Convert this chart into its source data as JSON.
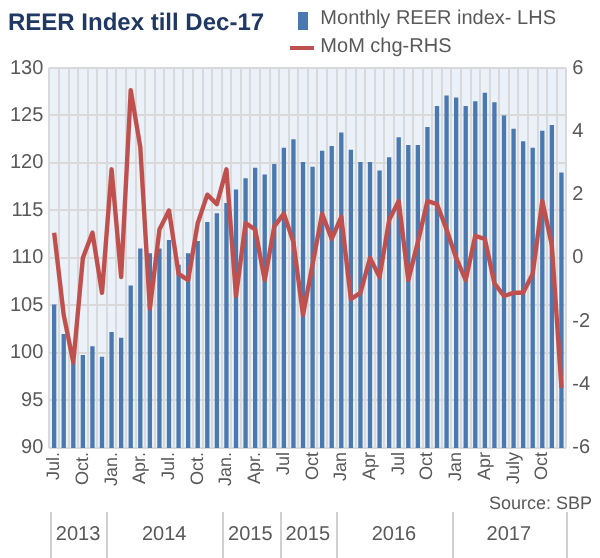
{
  "chart_data": {
    "type": "bar",
    "title": "REER Index till Dec-17",
    "categories": [
      "Jul.",
      null,
      null,
      "Oct.",
      null,
      null,
      "Jan.",
      null,
      null,
      "Apr.",
      null,
      null,
      "Jul.",
      null,
      null,
      "Oct.",
      null,
      null,
      "Jan.",
      null,
      null,
      "Apr.",
      null,
      null,
      "Jul",
      null,
      null,
      "Oct",
      null,
      null,
      "Jan",
      null,
      null,
      "Apr",
      null,
      null,
      "Jul",
      null,
      null,
      "Oct",
      null,
      null,
      "Jan",
      null,
      null,
      "Apr",
      null,
      null,
      "July",
      null,
      null,
      "Oct",
      null,
      null
    ],
    "series": [
      {
        "name": "Monthly REER index- LHS",
        "axis": "y",
        "color": "#4a78b0",
        "values": [
          105.1,
          102,
          99,
          99.8,
          100.7,
          99.6,
          102.2,
          101.6,
          107.1,
          111,
          110.5,
          111,
          111.9,
          109.3,
          110.5,
          111.8,
          113.8,
          114.7,
          115.8,
          117.2,
          118.4,
          119.5,
          118.8,
          119.9,
          121.6,
          122.5,
          120.1,
          119.6,
          121.3,
          121.8,
          123.2,
          121.4,
          120.1,
          120.1,
          119.2,
          120.6,
          122.7,
          121.9,
          121.9,
          123.8,
          126,
          127.1,
          126.9,
          126,
          126.5,
          127.4,
          126.4,
          125,
          123.6,
          122.3,
          121.6,
          123.4,
          124,
          119
        ]
      },
      {
        "name": "MoM chg-RHS",
        "type": "line",
        "axis": "y2",
        "color": "#c0504d",
        "values": [
          0.8,
          -1.8,
          -3.3,
          0,
          0.8,
          -1.1,
          2.8,
          -0.6,
          5.3,
          3.5,
          -1.6,
          0.9,
          1.5,
          -0.5,
          -0.7,
          1.1,
          2,
          1.7,
          2.8,
          -1.2,
          1.1,
          0.9,
          -0.7,
          1,
          1.4,
          0.5,
          -1.8,
          -0.2,
          1.4,
          0.6,
          1.3,
          -1.3,
          -1.1,
          0,
          -0.6,
          1.2,
          1.8,
          -0.7,
          0.5,
          1.8,
          1.7,
          0.9,
          0,
          -0.7,
          0.7,
          0.6,
          -0.8,
          -1.2,
          -1.1,
          -1.1,
          -0.5,
          1.8,
          0.4,
          -4.1
        ]
      }
    ],
    "ylim": [
      90,
      130
    ],
    "yticks": [
      90,
      95,
      100,
      105,
      110,
      115,
      120,
      125,
      130
    ],
    "y2lim": [
      -6,
      6
    ],
    "y2ticks": [
      -6,
      -4,
      -2,
      0,
      2,
      4,
      6
    ],
    "grid": true,
    "legend": "top right",
    "marker": "none",
    "line_style": "solid",
    "annotations": [
      "2013",
      "2014",
      "2015",
      "2015",
      "2016",
      "2017",
      "Source: SBP"
    ]
  }
}
